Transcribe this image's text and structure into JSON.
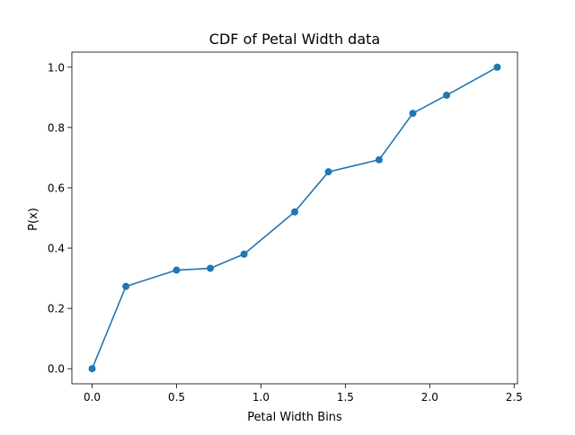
{
  "chart_data": {
    "type": "line",
    "title": "CDF of Petal Width data",
    "xlabel": "Petal Width Bins",
    "ylabel": "P(x)",
    "xlim": [
      -0.12,
      2.52
    ],
    "ylim": [
      -0.05,
      1.05
    ],
    "xticks": [
      0.0,
      0.5,
      1.0,
      1.5,
      2.0,
      2.5
    ],
    "xtick_labels": [
      "0.0",
      "0.5",
      "1.0",
      "1.5",
      "2.0",
      "2.5"
    ],
    "yticks": [
      0.0,
      0.2,
      0.4,
      0.6,
      0.8,
      1.0
    ],
    "ytick_labels": [
      "0.0",
      "0.2",
      "0.4",
      "0.6",
      "0.8",
      "1.0"
    ],
    "grid": false,
    "series": [
      {
        "color": "#1f77b4",
        "marker": "circle",
        "x": [
          0.0,
          0.2,
          0.5,
          0.7,
          0.9,
          1.2,
          1.4,
          1.7,
          1.9,
          2.1,
          2.4
        ],
        "y": [
          0.0,
          0.273,
          0.327,
          0.333,
          0.38,
          0.52,
          0.653,
          0.693,
          0.847,
          0.907,
          1.0
        ]
      }
    ]
  }
}
